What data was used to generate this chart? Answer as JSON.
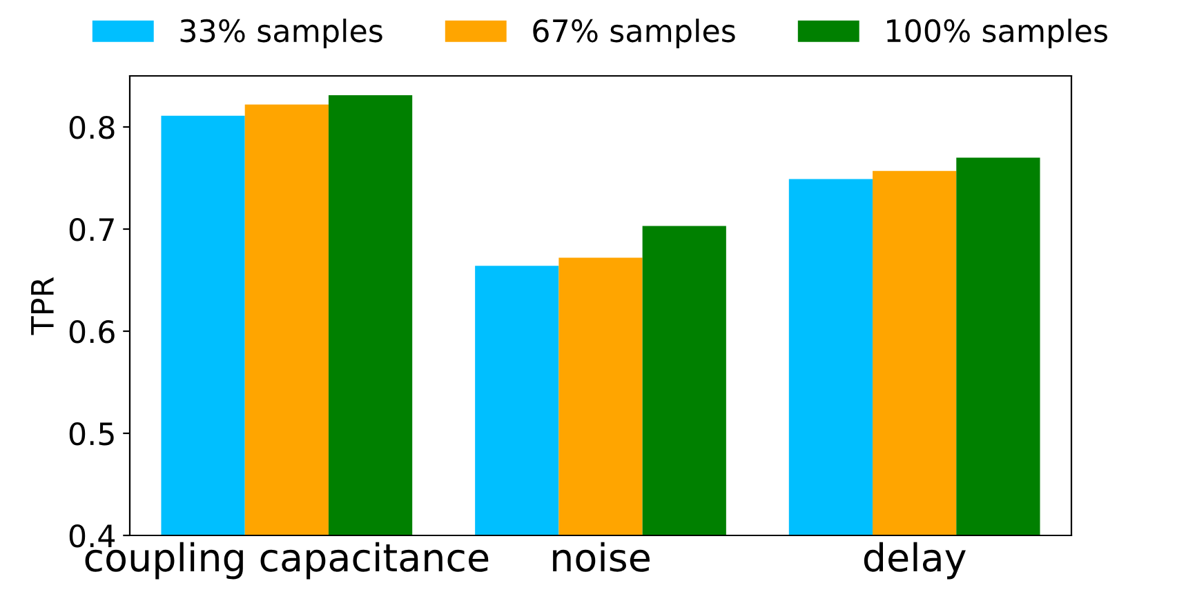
{
  "chart_data": {
    "type": "bar",
    "ylabel": "TPR",
    "categories": [
      "coupling capacitance",
      "noise",
      "delay"
    ],
    "series": [
      {
        "name": "33% samples",
        "color": "#00bfff",
        "values": [
          0.811,
          0.664,
          0.749
        ]
      },
      {
        "name": "67% samples",
        "color": "#ffa500",
        "values": [
          0.822,
          0.672,
          0.757
        ]
      },
      {
        "name": "100% samples",
        "color": "#008000",
        "values": [
          0.831,
          0.703,
          0.77
        ]
      }
    ],
    "ylim": [
      0.4,
      0.85
    ],
    "yticks": [
      0.4,
      0.5,
      0.6,
      0.7,
      0.8
    ],
    "legend": "top",
    "grid": false
  }
}
